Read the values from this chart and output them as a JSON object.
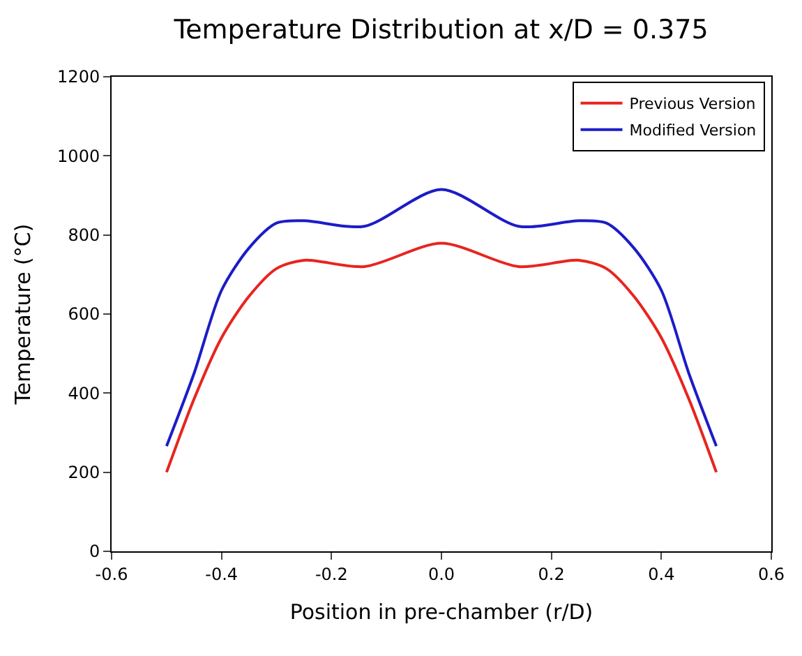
{
  "chart_data": {
    "type": "line",
    "title": "Temperature Distribution at x/D = 0.375",
    "xlabel": "Position in pre-chamber (r/D)",
    "ylabel": "Temperature (°C)",
    "x": [
      -0.5,
      -0.45,
      -0.4,
      -0.35,
      -0.3,
      -0.25,
      -0.14,
      0,
      0.14,
      0.25,
      0.3,
      0.35,
      0.4,
      0.45,
      0.5
    ],
    "series": [
      {
        "name": "Previous Version",
        "color": "#e8241f",
        "values": [
          200,
          385,
          540,
          645,
          715,
          736,
          720,
          779,
          720,
          736,
          715,
          645,
          540,
          385,
          200
        ]
      },
      {
        "name": "Modified Version",
        "color": "#1c1cc8",
        "values": [
          266,
          450,
          660,
          767,
          830,
          836,
          822,
          915,
          822,
          836,
          830,
          767,
          660,
          450,
          266
        ]
      }
    ],
    "xlim": [
      -0.6,
      0.6
    ],
    "xticks": [
      {
        "value": -0.6,
        "label": "-0.6"
      },
      {
        "value": -0.4,
        "label": "-0.4"
      },
      {
        "value": -0.2,
        "label": "-0.2"
      },
      {
        "value": 0,
        "label": "0.0"
      },
      {
        "value": 0.2,
        "label": "0.2"
      },
      {
        "value": 0.4,
        "label": "0.4"
      },
      {
        "value": 0.6,
        "label": "0.6"
      }
    ],
    "ylim": [
      0,
      1200
    ],
    "yticks": [
      0,
      200,
      400,
      600,
      800,
      1000,
      1200
    ],
    "legend": "top right",
    "marker": "none",
    "line_style": "solid"
  }
}
